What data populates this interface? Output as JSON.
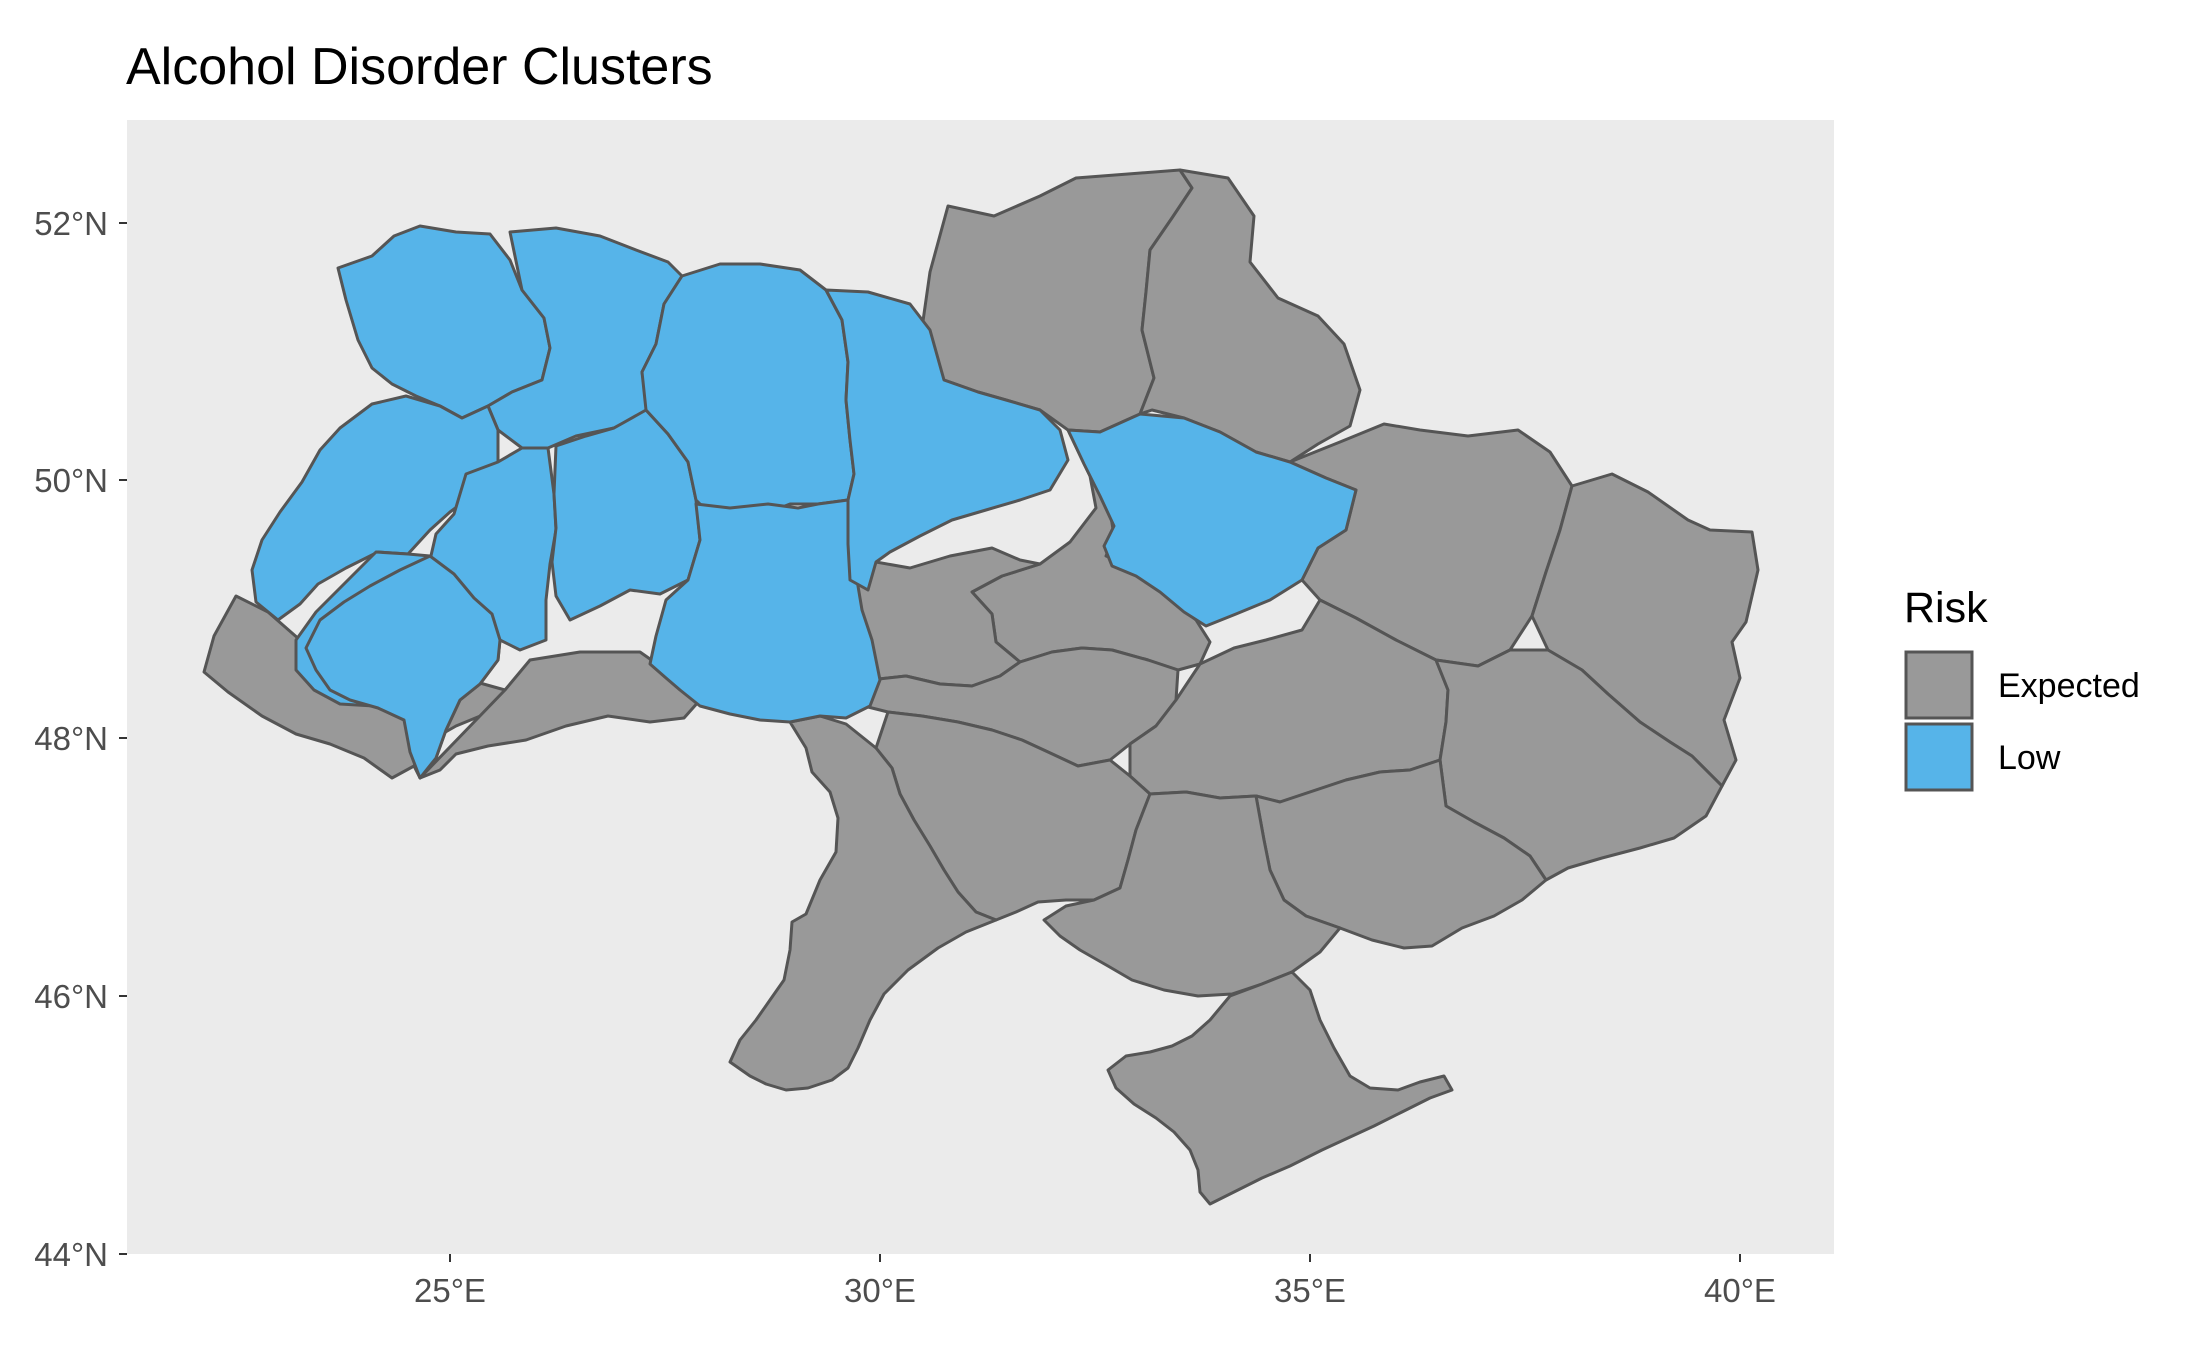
{
  "title": "Alcohol Disorder Clusters",
  "x_axis": {
    "ticks": [
      {
        "value": 25,
        "label": "25°E"
      },
      {
        "value": 30,
        "label": "30°E"
      },
      {
        "value": 35,
        "label": "35°E"
      },
      {
        "value": 40,
        "label": "40°E"
      }
    ]
  },
  "y_axis": {
    "ticks": [
      {
        "value": 44,
        "label": "44°N"
      },
      {
        "value": 46,
        "label": "46°N"
      },
      {
        "value": 48,
        "label": "48°N"
      },
      {
        "value": 50,
        "label": "50°N"
      },
      {
        "value": 52,
        "label": "52°N"
      }
    ]
  },
  "legend": {
    "title": "Risk",
    "items": [
      {
        "label": "Expected",
        "color": "#999999"
      },
      {
        "label": "Low",
        "color": "#56b4e9"
      }
    ]
  },
  "colors": {
    "panel_background": "#ebebeb",
    "region_border": "#555555",
    "expected": "#999999",
    "low": "#56b4e9"
  }
}
